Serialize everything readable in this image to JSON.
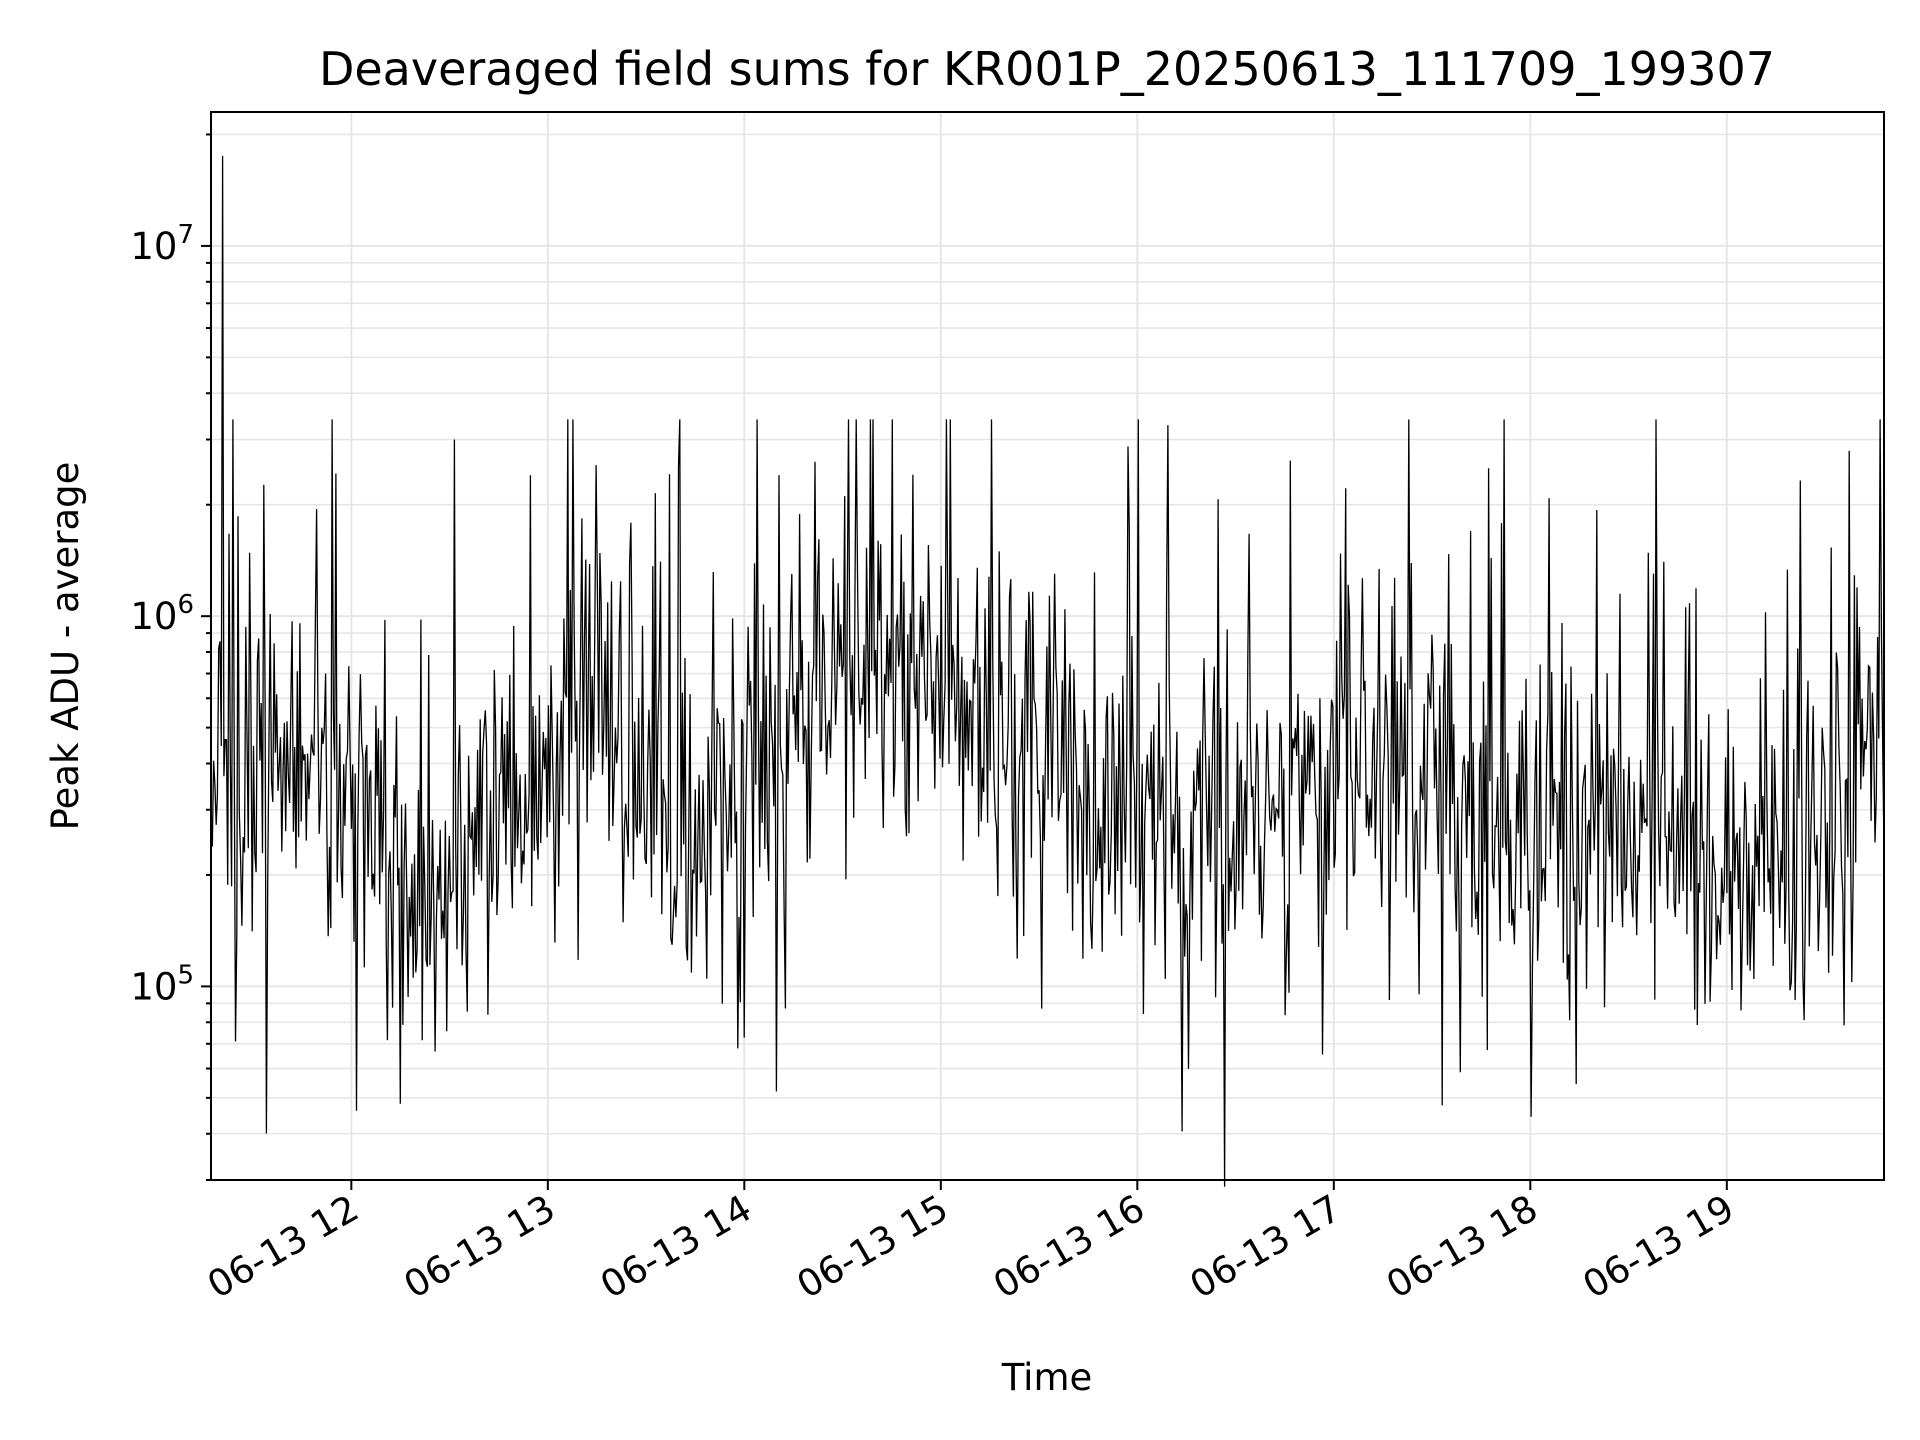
{
  "chart_data": {
    "type": "line",
    "title": "Deaveraged field sums for KR001P_20250613_111709_199307",
    "xlabel": "Time",
    "ylabel": "Peak ADU - average",
    "yscale": "log",
    "xlim": [
      "2025-06-13 11:17:09",
      "2025-06-13 19:48:00"
    ],
    "ylim": [
      30000,
      23000000
    ],
    "x_ticks": [
      "06-13 12",
      "06-13 13",
      "06-13 14",
      "06-13 15",
      "06-13 16",
      "06-13 17",
      "06-13 18",
      "06-13 19"
    ],
    "y_ticks": [
      {
        "base": "10",
        "exp": "5",
        "value": 100000
      },
      {
        "base": "10",
        "exp": "6",
        "value": 1000000
      },
      {
        "base": "10",
        "exp": "7",
        "value": 10000000
      }
    ],
    "grid": true,
    "line_color": "#000000",
    "grid_color": "#e6e6e6",
    "series": [
      {
        "values_note_level_profile": "",
        "x": [
          "2025-06-13 11:17",
          "2025-06-13 11:30",
          "2025-06-13 11:45",
          "2025-06-13 12:00",
          "2025-06-13 12:15",
          "2025-06-13 12:30",
          "2025-06-13 12:45",
          "2025-06-13 13:00",
          "2025-06-13 13:15",
          "2025-06-13 13:30",
          "2025-06-13 13:45",
          "2025-06-13 14:00",
          "2025-06-13 14:15",
          "2025-06-13 14:30",
          "2025-06-13 14:45",
          "2025-06-13 15:00",
          "2025-06-13 15:15",
          "2025-06-13 15:30",
          "2025-06-13 15:45",
          "2025-06-13 16:00",
          "2025-06-13 16:15",
          "2025-06-13 16:30",
          "2025-06-13 16:45",
          "2025-06-13 17:00",
          "2025-06-13 17:15",
          "2025-06-13 17:30",
          "2025-06-13 17:45",
          "2025-06-13 18:00",
          "2025-06-13 18:15",
          "2025-06-13 18:30",
          "2025-06-13 18:45",
          "2025-06-13 19:00",
          "2025-06-13 19:15",
          "2025-06-13 19:30",
          "2025-06-13 19:45"
        ],
        "values": [
          250000,
          300000,
          500000,
          350000,
          180000,
          170000,
          300000,
          450000,
          550000,
          300000,
          250000,
          450000,
          700000,
          800000,
          900000,
          700000,
          550000,
          420000,
          330000,
          300000,
          280000,
          250000,
          300000,
          350000,
          450000,
          320000,
          250000,
          230000,
          280000,
          260000,
          230000,
          200000,
          230000,
          300000,
          450000
        ]
      }
    ]
  }
}
